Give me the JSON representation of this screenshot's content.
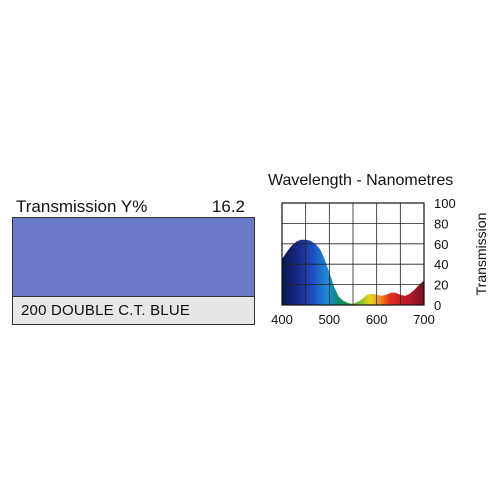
{
  "swatch": {
    "transmission_label": "Transmission Y%",
    "transmission_value": "16.2",
    "filter_name": "200 DOUBLE C.T. BLUE",
    "color": "#6a78c8"
  },
  "chart_data": {
    "type": "area",
    "title": "Wavelength - Nanometres",
    "xlabel": "",
    "ylabel": "Transmission",
    "xlim": [
      400,
      700
    ],
    "ylim": [
      0,
      100
    ],
    "x_ticks": [
      400,
      500,
      600,
      700
    ],
    "y_ticks": [
      0,
      20,
      40,
      60,
      80,
      100
    ],
    "grid": true,
    "x": [
      400,
      410,
      420,
      430,
      440,
      450,
      460,
      470,
      480,
      490,
      500,
      510,
      520,
      530,
      540,
      550,
      560,
      570,
      580,
      590,
      600,
      610,
      620,
      630,
      640,
      650,
      660,
      670,
      680,
      690,
      700
    ],
    "values": [
      45,
      52,
      58,
      62,
      64,
      64,
      63,
      60,
      55,
      45,
      32,
      18,
      8,
      4,
      2,
      1,
      3,
      6,
      10,
      11,
      10,
      9,
      10,
      12,
      12,
      10,
      9,
      11,
      15,
      20,
      24
    ]
  }
}
